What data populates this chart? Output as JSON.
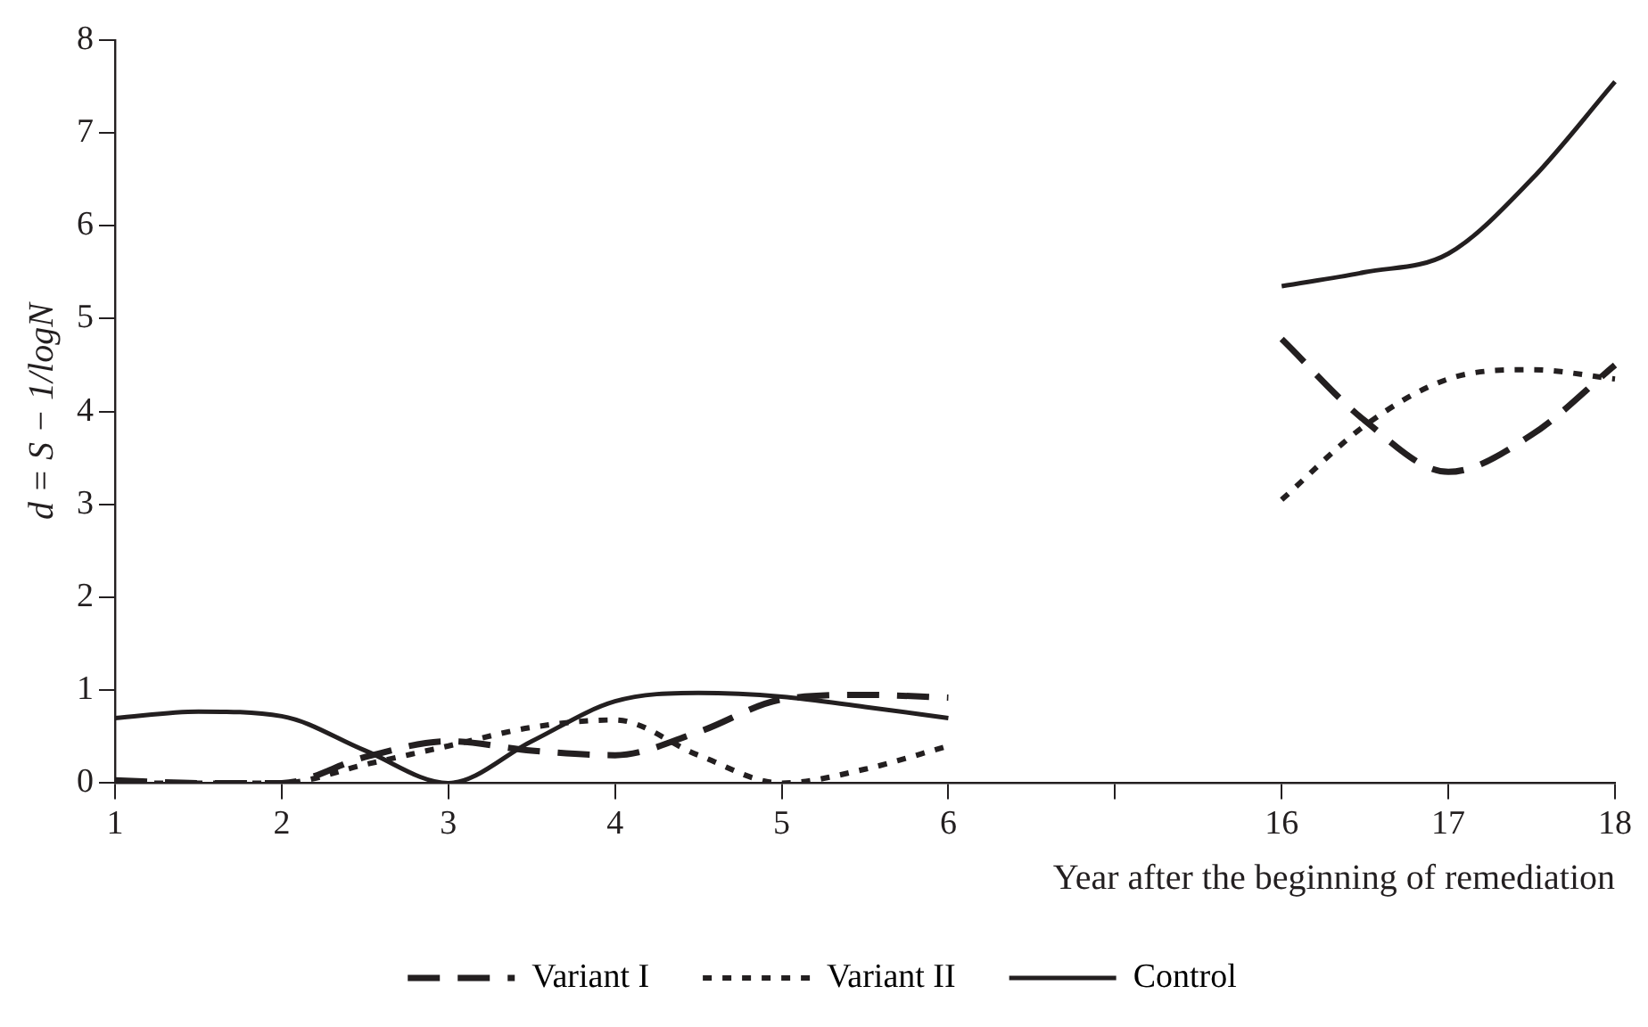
{
  "chart_data": {
    "type": "line",
    "xlabel": "Year after the beginning of remediation",
    "ylabel": "d = S − 1/logN",
    "categories": [
      "1",
      null,
      "2",
      null,
      "3",
      null,
      "4",
      null,
      "5",
      null,
      "6",
      null,
      null,
      null,
      "16",
      null,
      "17",
      null,
      "18"
    ],
    "series": [
      {
        "name": "Variant I",
        "color": "#231f20",
        "line_style": "dashed",
        "values": [
          0.03,
          0,
          0,
          0.28,
          0.45,
          0.35,
          0.3,
          0.55,
          0.9,
          0.95,
          0.92,
          null,
          null,
          null,
          4.78,
          3.9,
          3.35,
          3.75,
          4.5
        ]
      },
      {
        "name": "Variant II",
        "color": "#231f20",
        "line_style": "dotted",
        "values": [
          0,
          0,
          0,
          0.2,
          0.4,
          0.6,
          0.68,
          0.3,
          0,
          0.15,
          0.4,
          null,
          null,
          null,
          3.05,
          3.85,
          4.35,
          4.45,
          4.35
        ]
      },
      {
        "name": "Control",
        "color": "#231f20",
        "line_style": "solid",
        "values": [
          0.7,
          0.77,
          0.72,
          0.35,
          0,
          0.45,
          0.88,
          0.97,
          0.93,
          0.82,
          0.7,
          null,
          null,
          null,
          5.35,
          5.5,
          5.7,
          6.5,
          7.55
        ]
      }
    ],
    "ylim": [
      0,
      8
    ],
    "yticks": [
      0,
      1,
      2,
      3,
      4,
      5,
      6,
      7,
      8
    ],
    "grid": false,
    "legend": "bottom",
    "marker": "none"
  }
}
